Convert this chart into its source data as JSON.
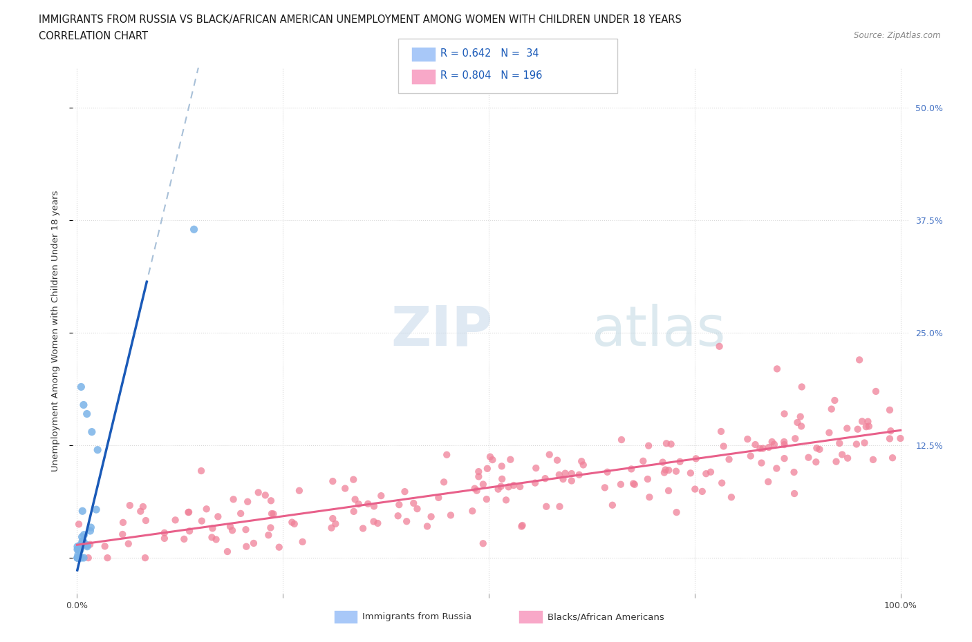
{
  "title_line1": "IMMIGRANTS FROM RUSSIA VS BLACK/AFRICAN AMERICAN UNEMPLOYMENT AMONG WOMEN WITH CHILDREN UNDER 18 YEARS",
  "title_line2": "CORRELATION CHART",
  "source_text": "Source: ZipAtlas.com",
  "ylabel": "Unemployment Among Women with Children Under 18 years",
  "watermark_zip": "ZIP",
  "watermark_atlas": "atlas",
  "background_color": "#ffffff",
  "scatter_russia_color": "#7ab3e8",
  "scatter_black_color": "#f08098",
  "line_russia_color": "#1a5ab8",
  "line_black_color": "#e8608a",
  "trend_russia_dashed_color": "#a8c0d8",
  "right_tick_color": "#4472c4",
  "grid_color": "#d8d8d8"
}
